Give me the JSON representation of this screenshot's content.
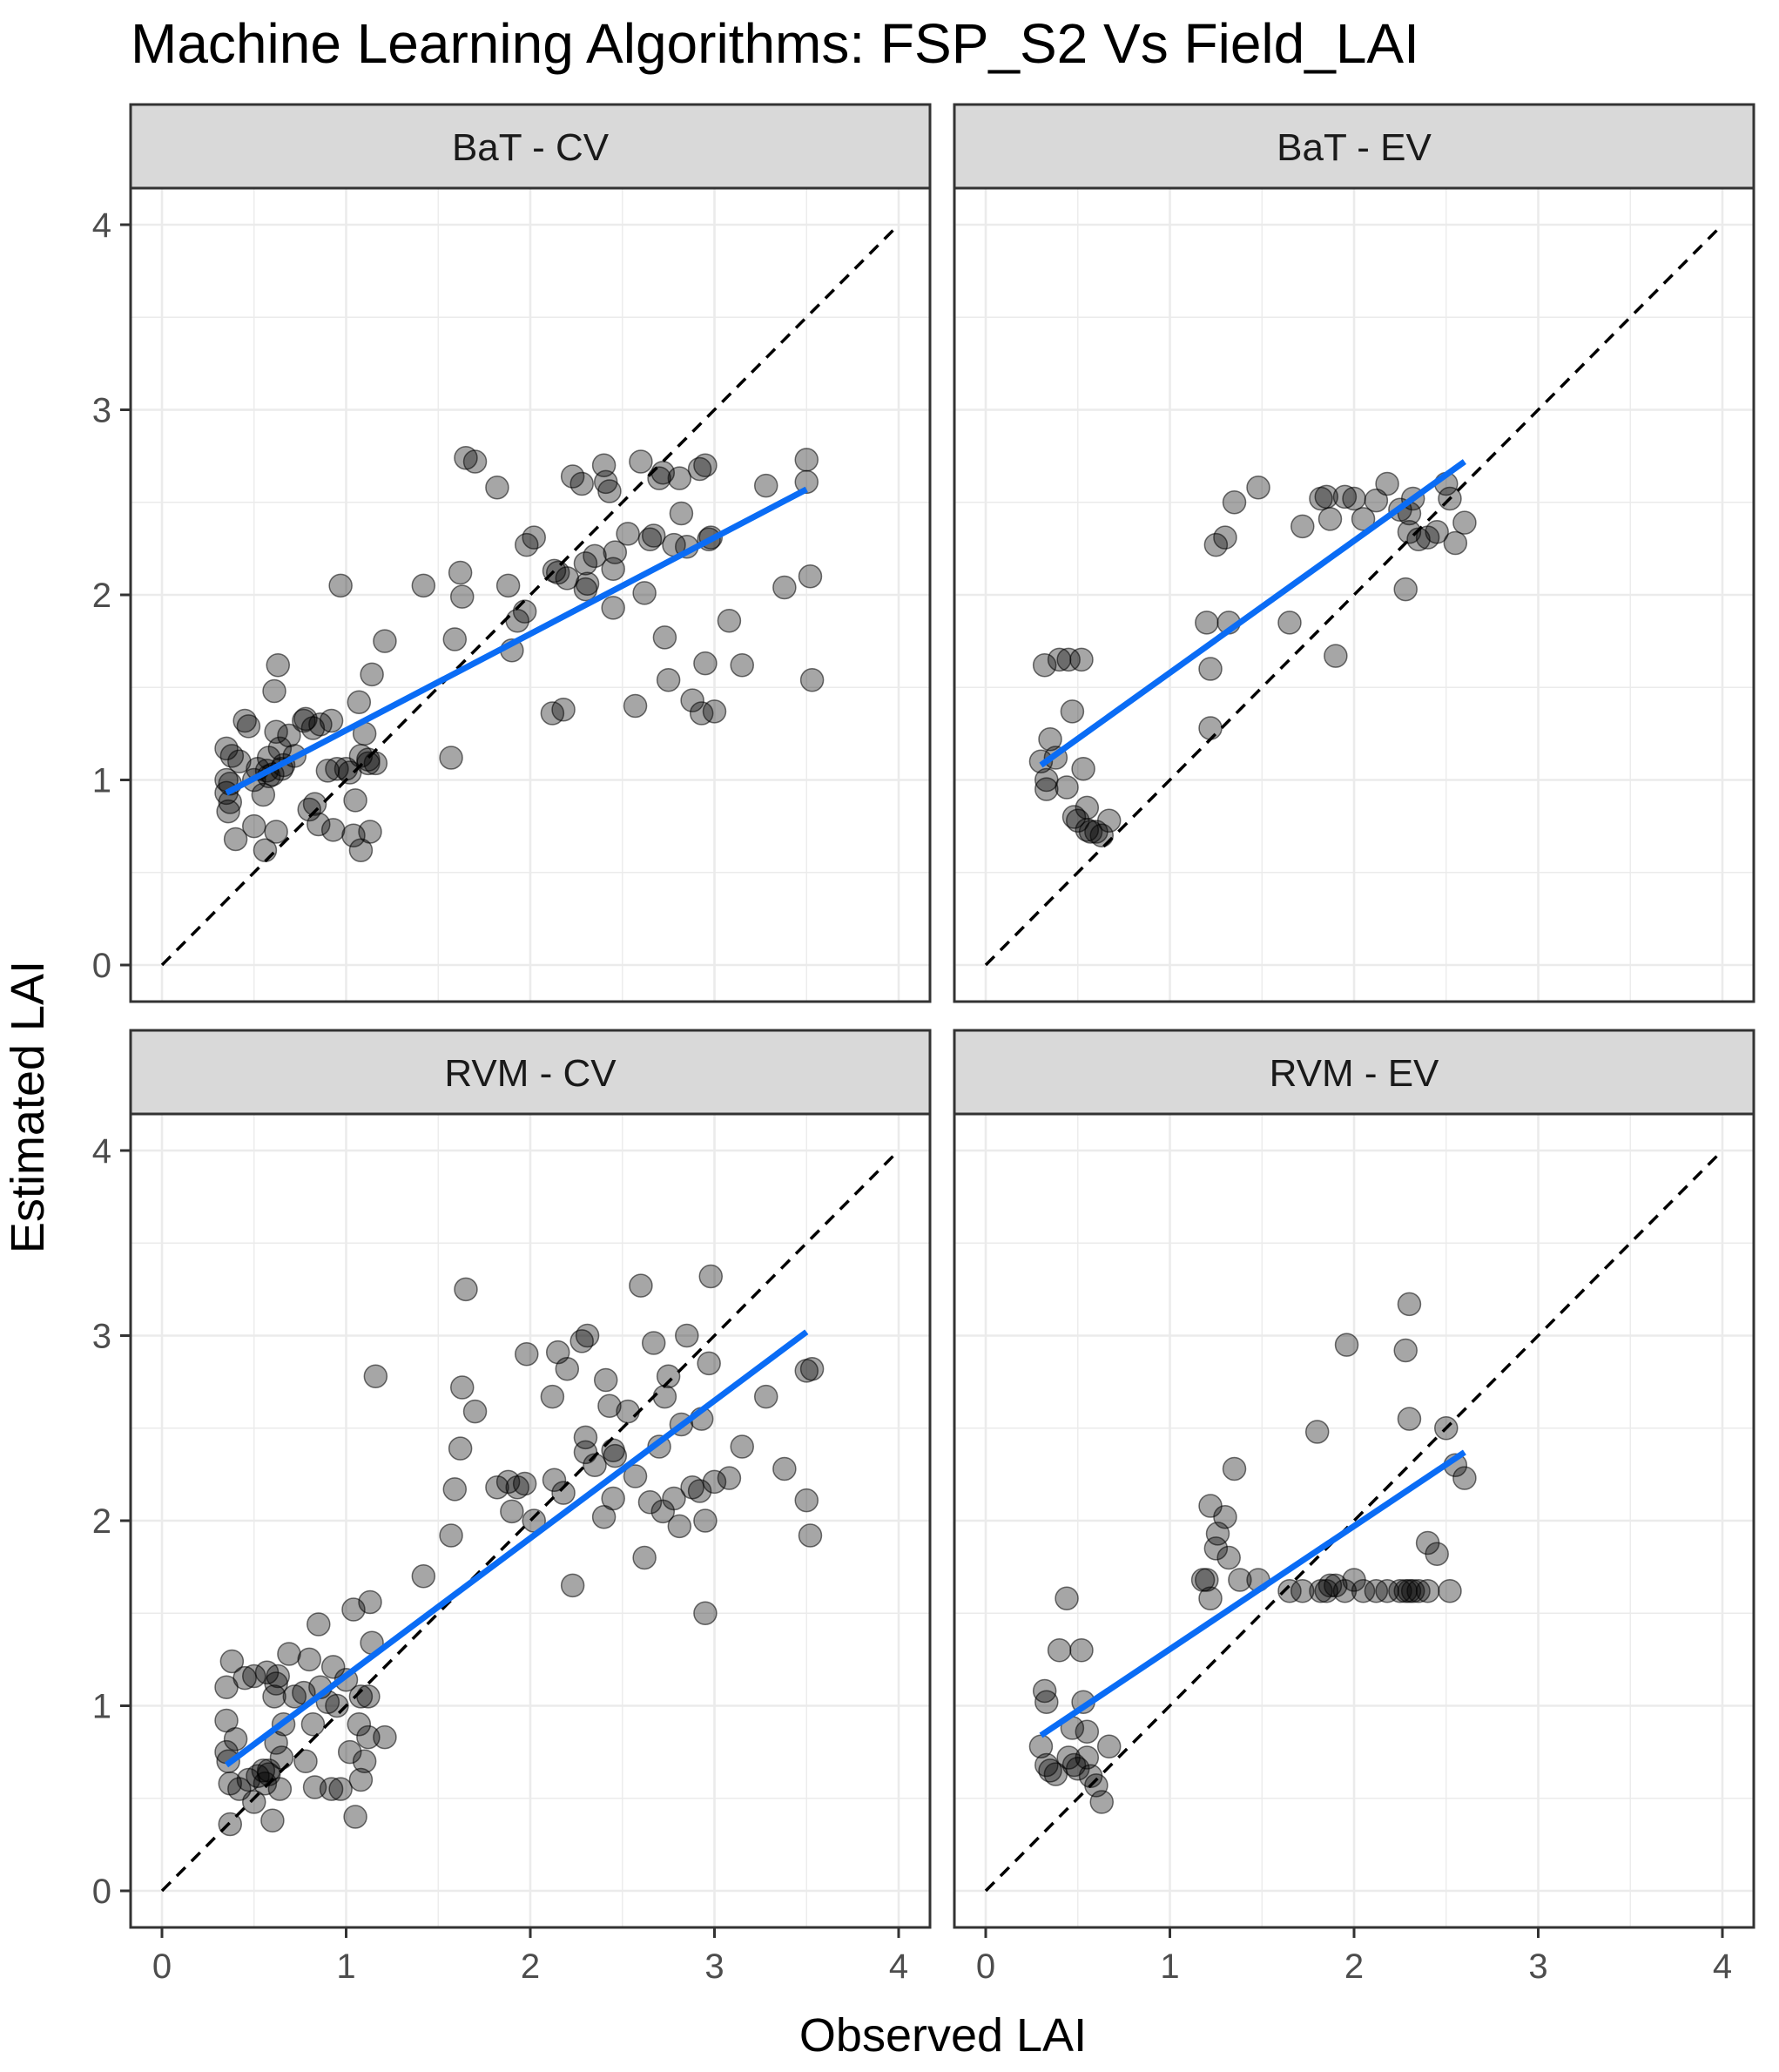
{
  "title": "Machine Learning Algorithms: FSP_S2 Vs Field_LAI",
  "xlabel": "Observed LAI",
  "ylabel": "Estimated LAI",
  "colors": {
    "points": "#000000",
    "fit_line": "#0a6cf5",
    "identity_line": "#000000",
    "strip_fill": "#d9d9d9",
    "grid": "#ebebeb"
  },
  "chart_data": [
    {
      "type": "scatter",
      "panel": "BaT - CV",
      "xlim": [
        0,
        4
      ],
      "ylim": [
        0,
        4
      ],
      "xticks": [
        "0",
        "1",
        "2",
        "3",
        "4"
      ],
      "yticks": [
        "0",
        "1",
        "2",
        "3",
        "4"
      ],
      "identity_line": [
        [
          0,
          0
        ],
        [
          4,
          4
        ]
      ],
      "fit_line": [
        [
          0.35,
          0.93
        ],
        [
          3.5,
          2.57
        ]
      ],
      "x": [
        0.35,
        0.35,
        0.35,
        0.36,
        0.37,
        0.37,
        0.38,
        0.4,
        0.42,
        0.45,
        0.47,
        0.5,
        0.5,
        0.52,
        0.55,
        0.56,
        0.57,
        0.58,
        0.58,
        0.6,
        0.61,
        0.62,
        0.62,
        0.63,
        0.64,
        0.65,
        0.66,
        0.69,
        0.72,
        0.77,
        0.78,
        0.8,
        0.82,
        0.83,
        0.85,
        0.86,
        0.9,
        0.92,
        0.93,
        0.95,
        0.97,
        1.0,
        1.02,
        1.04,
        1.05,
        1.07,
        1.08,
        1.08,
        1.1,
        1.12,
        1.12,
        1.13,
        1.14,
        1.16,
        1.21,
        1.42,
        1.57,
        1.59,
        1.62,
        1.63,
        1.65,
        1.7,
        1.82,
        1.88,
        1.9,
        1.93,
        1.97,
        1.98,
        2.02,
        2.12,
        2.13,
        2.15,
        2.18,
        2.2,
        2.23,
        2.28,
        2.3,
        2.3,
        2.31,
        2.35,
        2.4,
        2.41,
        2.43,
        2.45,
        2.45,
        2.46,
        2.53,
        2.57,
        2.6,
        2.62,
        2.65,
        2.67,
        2.7,
        2.72,
        2.73,
        2.75,
        2.78,
        2.81,
        2.82,
        2.85,
        2.88,
        2.92,
        2.93,
        2.95,
        2.95,
        2.97,
        2.98,
        3.0,
        3.08,
        3.15,
        3.28,
        3.38,
        3.5,
        3.5,
        3.52,
        3.53
      ],
      "y": [
        0.93,
        1.0,
        1.17,
        0.83,
        0.98,
        0.88,
        1.13,
        0.68,
        1.1,
        1.32,
        1.29,
        1.0,
        0.75,
        1.06,
        0.92,
        0.62,
        1.05,
        1.12,
        1.02,
        1.03,
        1.48,
        1.26,
        0.72,
        1.62,
        1.17,
        1.06,
        1.08,
        1.24,
        1.13,
        1.32,
        1.33,
        0.84,
        1.28,
        0.87,
        0.76,
        1.3,
        1.05,
        1.32,
        0.73,
        1.06,
        2.05,
        1.06,
        1.04,
        0.7,
        0.89,
        1.42,
        0.62,
        1.13,
        1.25,
        1.09,
        1.11,
        0.72,
        1.57,
        1.09,
        1.75,
        2.05,
        1.12,
        1.76,
        2.12,
        1.99,
        2.74,
        2.72,
        2.58,
        2.05,
        1.7,
        1.86,
        1.91,
        2.27,
        2.31,
        1.36,
        2.13,
        2.12,
        1.38,
        2.09,
        2.64,
        2.6,
        2.03,
        2.17,
        2.06,
        2.21,
        2.7,
        2.61,
        2.56,
        2.14,
        1.93,
        2.23,
        2.33,
        1.4,
        2.72,
        2.01,
        2.3,
        2.32,
        2.63,
        2.66,
        1.77,
        1.54,
        2.27,
        2.63,
        2.44,
        2.26,
        1.43,
        2.68,
        1.36,
        2.7,
        1.63,
        2.3,
        2.31,
        1.37,
        1.86,
        1.62,
        2.59,
        2.04,
        2.73,
        2.61,
        2.1,
        1.54
      ]
    },
    {
      "type": "scatter",
      "panel": "BaT - EV",
      "xlim": [
        0,
        4
      ],
      "ylim": [
        0,
        4
      ],
      "xticks": [
        "0",
        "1",
        "2",
        "3",
        "4"
      ],
      "yticks": [
        "0",
        "1",
        "2",
        "3",
        "4"
      ],
      "identity_line": [
        [
          0,
          0
        ],
        [
          4,
          4
        ]
      ],
      "fit_line": [
        [
          0.3,
          1.08
        ],
        [
          2.6,
          2.72
        ]
      ],
      "x": [
        0.3,
        0.32,
        0.33,
        0.33,
        0.35,
        0.38,
        0.4,
        0.44,
        0.45,
        0.47,
        0.48,
        0.5,
        0.52,
        0.53,
        0.55,
        0.55,
        0.57,
        0.6,
        0.63,
        0.67,
        1.2,
        1.22,
        1.22,
        1.25,
        1.3,
        1.32,
        1.35,
        1.48,
        1.65,
        1.72,
        1.82,
        1.85,
        1.87,
        1.9,
        1.95,
        2.0,
        2.05,
        2.12,
        2.18,
        2.25,
        2.28,
        2.3,
        2.3,
        2.32,
        2.35,
        2.4,
        2.45,
        2.5,
        2.52,
        2.55,
        2.6
      ],
      "y": [
        1.1,
        1.62,
        1.0,
        0.95,
        1.22,
        1.12,
        1.65,
        0.96,
        1.65,
        1.37,
        0.8,
        0.78,
        1.65,
        1.06,
        0.85,
        0.73,
        0.72,
        0.72,
        0.7,
        0.78,
        1.85,
        1.6,
        1.28,
        2.27,
        2.31,
        1.85,
        2.5,
        2.58,
        1.85,
        2.37,
        2.52,
        2.53,
        2.41,
        1.67,
        2.53,
        2.52,
        2.41,
        2.51,
        2.6,
        2.46,
        2.03,
        2.44,
        2.34,
        2.52,
        2.3,
        2.31,
        2.34,
        2.6,
        2.52,
        2.28,
        2.39
      ]
    },
    {
      "type": "scatter",
      "panel": "RVM - CV",
      "xlim": [
        0,
        4
      ],
      "ylim": [
        0,
        4
      ],
      "xticks": [
        "0",
        "1",
        "2",
        "3",
        "4"
      ],
      "yticks": [
        "0",
        "1",
        "2",
        "3",
        "4"
      ],
      "identity_line": [
        [
          0,
          0
        ],
        [
          4,
          4
        ]
      ],
      "fit_line": [
        [
          0.35,
          0.68
        ],
        [
          3.5,
          3.02
        ]
      ],
      "x": [
        0.35,
        0.35,
        0.35,
        0.36,
        0.37,
        0.37,
        0.38,
        0.4,
        0.42,
        0.45,
        0.47,
        0.5,
        0.5,
        0.52,
        0.55,
        0.56,
        0.57,
        0.58,
        0.58,
        0.6,
        0.61,
        0.62,
        0.62,
        0.63,
        0.64,
        0.65,
        0.66,
        0.69,
        0.72,
        0.77,
        0.78,
        0.8,
        0.82,
        0.83,
        0.85,
        0.86,
        0.9,
        0.92,
        0.93,
        0.95,
        0.97,
        1.0,
        1.02,
        1.04,
        1.05,
        1.07,
        1.08,
        1.08,
        1.1,
        1.12,
        1.12,
        1.13,
        1.14,
        1.16,
        1.21,
        1.42,
        1.57,
        1.59,
        1.62,
        1.63,
        1.65,
        1.7,
        1.82,
        1.88,
        1.9,
        1.93,
        1.97,
        1.98,
        2.02,
        2.12,
        2.13,
        2.15,
        2.18,
        2.2,
        2.23,
        2.28,
        2.3,
        2.3,
        2.31,
        2.35,
        2.4,
        2.41,
        2.43,
        2.45,
        2.45,
        2.46,
        2.53,
        2.57,
        2.6,
        2.62,
        2.65,
        2.67,
        2.7,
        2.72,
        2.73,
        2.75,
        2.78,
        2.81,
        2.82,
        2.85,
        2.88,
        2.92,
        2.93,
        2.95,
        2.95,
        2.97,
        2.98,
        3.0,
        3.08,
        3.15,
        3.28,
        3.38,
        3.5,
        3.5,
        3.52,
        3.53
      ],
      "y": [
        0.75,
        0.92,
        1.1,
        0.7,
        0.36,
        0.58,
        1.24,
        0.82,
        0.55,
        1.15,
        0.6,
        0.48,
        1.16,
        0.62,
        0.65,
        0.58,
        1.18,
        0.63,
        0.65,
        0.38,
        1.05,
        0.8,
        1.12,
        1.16,
        0.55,
        0.72,
        0.9,
        1.28,
        1.05,
        1.07,
        0.7,
        1.25,
        0.9,
        0.56,
        1.44,
        1.1,
        1.02,
        0.55,
        1.21,
        1.0,
        0.55,
        1.14,
        0.75,
        1.52,
        0.4,
        0.9,
        0.6,
        1.05,
        0.7,
        1.05,
        0.83,
        1.56,
        1.34,
        2.78,
        0.83,
        1.7,
        1.92,
        2.17,
        2.39,
        2.72,
        3.25,
        2.59,
        2.18,
        2.21,
        2.05,
        2.18,
        2.2,
        2.9,
        2.0,
        2.67,
        2.22,
        2.91,
        2.15,
        2.82,
        1.65,
        2.97,
        2.45,
        2.37,
        3.0,
        2.3,
        2.02,
        2.76,
        2.62,
        2.12,
        2.38,
        2.35,
        2.59,
        2.24,
        3.27,
        1.8,
        2.1,
        2.96,
        2.4,
        2.05,
        2.67,
        2.78,
        2.12,
        1.97,
        2.52,
        3.0,
        2.18,
        2.16,
        2.55,
        2.0,
        1.5,
        2.85,
        3.32,
        2.21,
        2.23,
        2.4,
        2.67,
        2.28,
        2.81,
        2.11,
        1.92,
        2.82
      ]
    },
    {
      "type": "scatter",
      "panel": "RVM - EV",
      "xlim": [
        0,
        4
      ],
      "ylim": [
        0,
        4
      ],
      "xticks": [
        "0",
        "1",
        "2",
        "3",
        "4"
      ],
      "yticks": [
        "0",
        "1",
        "2",
        "3",
        "4"
      ],
      "identity_line": [
        [
          0,
          0
        ],
        [
          4,
          4
        ]
      ],
      "fit_line": [
        [
          0.3,
          0.84
        ],
        [
          2.6,
          2.37
        ]
      ],
      "x": [
        0.3,
        0.32,
        0.33,
        0.33,
        0.35,
        0.38,
        0.4,
        0.44,
        0.45,
        0.47,
        0.48,
        0.5,
        0.52,
        0.53,
        0.55,
        0.55,
        0.57,
        0.6,
        0.63,
        0.67,
        1.2,
        1.22,
        1.22,
        1.25,
        1.3,
        1.32,
        1.35,
        1.48,
        1.65,
        1.72,
        1.82,
        1.85,
        1.87,
        1.9,
        1.95,
        2.0,
        2.05,
        2.12,
        2.18,
        2.25,
        2.28,
        2.3,
        2.3,
        2.32,
        2.35,
        2.4,
        2.45,
        2.5,
        2.52,
        2.55,
        2.6,
        1.18,
        1.26,
        1.38,
        1.8,
        1.96,
        2.28,
        2.3,
        2.4
      ],
      "y": [
        0.78,
        1.08,
        1.02,
        0.68,
        0.65,
        0.63,
        1.3,
        1.58,
        0.72,
        0.88,
        0.68,
        0.66,
        1.3,
        1.02,
        0.86,
        0.72,
        0.62,
        0.57,
        0.48,
        0.78,
        1.68,
        1.58,
        2.08,
        1.85,
        2.02,
        1.8,
        2.28,
        1.68,
        1.62,
        1.62,
        1.62,
        1.62,
        1.65,
        1.65,
        1.62,
        1.68,
        1.62,
        1.62,
        1.62,
        1.62,
        2.92,
        3.17,
        2.55,
        1.62,
        1.62,
        1.88,
        1.82,
        2.5,
        1.62,
        2.3,
        2.23,
        1.68,
        1.93,
        1.68,
        2.48,
        2.95,
        1.62,
        1.62,
        1.62
      ]
    }
  ]
}
